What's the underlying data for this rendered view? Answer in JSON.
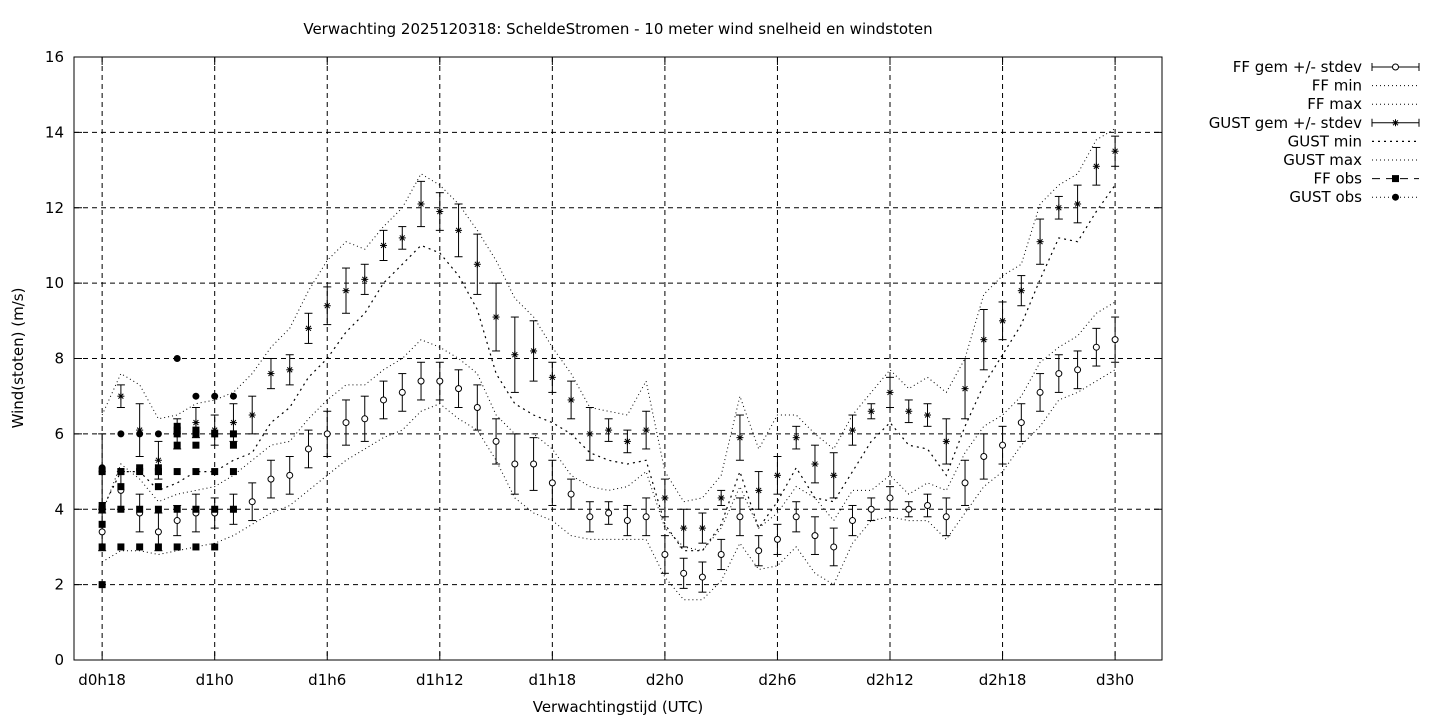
{
  "chart_data": {
    "type": "line",
    "title": "Verwachting 2025120318: ScheldeStromen - 10 meter wind snelheid en windstoten",
    "xlabel": "Verwachtingstijd (UTC)",
    "ylabel": "Wind(stoten) (m/s)",
    "ylim": [
      0,
      16
    ],
    "xlim": [
      -1.5,
      56.5
    ],
    "grid": true,
    "legend_position": "outside-right",
    "x_ticks": [
      {
        "x": 0,
        "label": "d0h18"
      },
      {
        "x": 6,
        "label": "d1h0"
      },
      {
        "x": 12,
        "label": "d1h6"
      },
      {
        "x": 18,
        "label": "d1h12"
      },
      {
        "x": 24,
        "label": "d1h18"
      },
      {
        "x": 30,
        "label": "d2h0"
      },
      {
        "x": 36,
        "label": "d2h6"
      },
      {
        "x": 42,
        "label": "d2h12"
      },
      {
        "x": 48,
        "label": "d2h18"
      },
      {
        "x": 54,
        "label": "d3h0"
      }
    ],
    "y_ticks": [
      0,
      2,
      4,
      6,
      8,
      10,
      12,
      14,
      16
    ],
    "legend": [
      {
        "label": "FF gem +/- stdev",
        "style": "errorbar-circle"
      },
      {
        "label": "FF min",
        "style": "dotted"
      },
      {
        "label": "FF max",
        "style": "dotted"
      },
      {
        "label": "GUST gem +/- stdev",
        "style": "errorbar-star"
      },
      {
        "label": "GUST min",
        "style": "dotted-coarse"
      },
      {
        "label": "GUST max",
        "style": "dotted"
      },
      {
        "label": "FF obs",
        "style": "dash-square"
      },
      {
        "label": "GUST obs",
        "style": "dotted-circle"
      }
    ],
    "x": [
      0,
      1,
      2,
      3,
      4,
      5,
      6,
      7,
      8,
      9,
      10,
      11,
      12,
      13,
      14,
      15,
      16,
      17,
      18,
      19,
      20,
      21,
      22,
      23,
      24,
      25,
      26,
      27,
      28,
      29,
      30,
      31,
      32,
      33,
      34,
      35,
      36,
      37,
      38,
      39,
      40,
      41,
      42,
      43,
      44,
      45,
      46,
      47,
      48,
      49,
      50,
      51,
      52,
      53,
      54
    ],
    "series": [
      {
        "name": "FF gem +/- stdev",
        "values": [
          3.4,
          4.5,
          3.9,
          3.4,
          3.7,
          3.9,
          3.9,
          4.0,
          4.2,
          4.8,
          4.9,
          5.6,
          6.0,
          6.3,
          6.4,
          6.9,
          7.1,
          7.4,
          7.4,
          7.2,
          6.7,
          5.8,
          5.2,
          5.2,
          4.7,
          4.4,
          3.8,
          3.9,
          3.7,
          3.8,
          2.8,
          2.3,
          2.2,
          2.8,
          3.8,
          2.9,
          3.2,
          3.8,
          3.3,
          3.0,
          3.7,
          4.0,
          4.3,
          4.0,
          4.1,
          3.8,
          4.7,
          5.4,
          5.7,
          6.3,
          7.1,
          7.6,
          7.7,
          8.3,
          8.5
        ],
        "stdev": [
          0.5,
          0.5,
          0.5,
          0.5,
          0.4,
          0.5,
          0.4,
          0.4,
          0.5,
          0.5,
          0.5,
          0.5,
          0.6,
          0.6,
          0.6,
          0.5,
          0.5,
          0.5,
          0.5,
          0.5,
          0.6,
          0.6,
          0.8,
          0.7,
          0.6,
          0.4,
          0.4,
          0.3,
          0.4,
          0.5,
          0.5,
          0.4,
          0.4,
          0.4,
          0.5,
          0.4,
          0.4,
          0.4,
          0.5,
          0.5,
          0.4,
          0.3,
          0.3,
          0.2,
          0.3,
          0.5,
          0.6,
          0.6,
          0.5,
          0.5,
          0.5,
          0.5,
          0.5,
          0.5,
          0.6
        ]
      },
      {
        "name": "FF min",
        "values": [
          2.6,
          2.9,
          2.9,
          2.8,
          2.9,
          3.0,
          3.1,
          3.3,
          3.6,
          3.9,
          4.1,
          4.5,
          4.9,
          5.3,
          5.6,
          5.9,
          6.1,
          6.6,
          6.8,
          6.4,
          6.1,
          5.3,
          4.3,
          3.9,
          3.7,
          3.3,
          3.2,
          3.2,
          3.2,
          3.2,
          2.2,
          1.6,
          1.6,
          2.1,
          3.1,
          2.4,
          2.5,
          3.0,
          2.3,
          2.0,
          3.1,
          3.7,
          3.8,
          3.7,
          3.7,
          3.2,
          3.9,
          4.6,
          5.0,
          5.7,
          6.2,
          6.9,
          7.1,
          7.4,
          7.7
        ]
      },
      {
        "name": "FF max",
        "values": [
          3.9,
          5.2,
          4.8,
          4.2,
          4.4,
          4.5,
          4.6,
          4.9,
          5.3,
          5.7,
          5.8,
          6.4,
          6.9,
          7.3,
          7.3,
          7.7,
          8.0,
          8.5,
          8.3,
          8.0,
          7.6,
          6.5,
          6.0,
          6.0,
          5.6,
          4.9,
          4.6,
          4.5,
          4.6,
          5.0,
          3.5,
          3.0,
          2.9,
          3.5,
          4.6,
          3.5,
          3.9,
          4.6,
          4.3,
          3.7,
          4.5,
          4.5,
          4.9,
          4.4,
          4.7,
          4.5,
          5.5,
          6.2,
          6.5,
          7.0,
          7.9,
          8.3,
          8.6,
          9.2,
          9.5
        ]
      },
      {
        "name": "GUST gem +/- stdev",
        "values": [
          5.0,
          7.0,
          6.1,
          5.3,
          6.0,
          6.3,
          6.1,
          6.3,
          6.5,
          7.6,
          7.7,
          8.8,
          9.4,
          9.8,
          10.1,
          11.0,
          11.2,
          12.1,
          11.9,
          11.4,
          10.5,
          9.1,
          8.1,
          8.2,
          7.5,
          6.9,
          6.0,
          6.1,
          5.8,
          6.1,
          4.3,
          3.5,
          3.5,
          4.3,
          5.9,
          4.5,
          4.9,
          5.9,
          5.2,
          4.9,
          6.1,
          6.6,
          7.1,
          6.6,
          6.5,
          5.8,
          7.2,
          8.5,
          9.0,
          9.8,
          11.1,
          12.0,
          12.1,
          13.1,
          13.5
        ],
        "stdev": [
          1.0,
          0.3,
          0.7,
          0.5,
          0.4,
          0.4,
          0.4,
          0.5,
          0.5,
          0.4,
          0.4,
          0.4,
          0.5,
          0.6,
          0.4,
          0.4,
          0.3,
          0.6,
          0.5,
          0.7,
          0.8,
          0.9,
          1.0,
          0.8,
          0.4,
          0.5,
          0.7,
          0.3,
          0.3,
          0.5,
          0.5,
          0.5,
          0.4,
          0.2,
          0.6,
          0.5,
          0.5,
          0.3,
          0.5,
          0.6,
          0.4,
          0.2,
          0.4,
          0.3,
          0.3,
          0.6,
          0.8,
          0.8,
          0.5,
          0.4,
          0.6,
          0.3,
          0.5,
          0.5,
          0.4
        ]
      },
      {
        "name": "GUST min",
        "values": [
          4.0,
          5.0,
          5.0,
          4.5,
          4.7,
          5.0,
          5.0,
          5.3,
          5.5,
          6.3,
          6.7,
          7.5,
          8.0,
          8.7,
          9.2,
          10.0,
          10.5,
          11.0,
          10.8,
          10.2,
          9.3,
          7.6,
          6.8,
          6.5,
          6.3,
          6.0,
          5.5,
          5.3,
          5.2,
          5.3,
          3.6,
          2.9,
          2.9,
          3.6,
          5.0,
          3.5,
          4.2,
          5.1,
          4.3,
          4.2,
          5.0,
          5.8,
          6.3,
          5.7,
          5.6,
          4.9,
          6.2,
          7.3,
          8.1,
          8.9,
          10.1,
          11.2,
          11.1,
          11.9,
          12.6
        ]
      },
      {
        "name": "GUST max",
        "values": [
          6.5,
          7.6,
          7.3,
          6.4,
          6.5,
          6.8,
          6.9,
          7.1,
          7.6,
          8.3,
          8.8,
          9.8,
          10.6,
          11.1,
          10.9,
          11.5,
          12.0,
          12.9,
          12.6,
          12.1,
          11.4,
          10.6,
          9.6,
          9.1,
          8.3,
          7.6,
          6.7,
          6.6,
          6.5,
          7.4,
          5.0,
          4.2,
          4.3,
          4.9,
          7.0,
          5.6,
          6.5,
          6.5,
          6.0,
          5.6,
          6.5,
          7.1,
          7.7,
          7.2,
          7.5,
          7.1,
          8.0,
          9.7,
          10.2,
          10.5,
          12.1,
          12.6,
          12.9,
          13.8,
          14.1
        ]
      },
      {
        "name": "FF obs",
        "x": [
          0,
          0,
          0,
          0,
          0,
          0,
          1,
          1,
          1,
          1,
          1,
          2,
          2,
          2,
          2,
          3,
          3,
          3,
          3,
          3,
          3,
          4,
          4,
          4,
          4,
          4,
          4,
          4,
          5,
          5,
          5,
          5,
          5,
          5,
          6,
          6,
          6,
          6,
          7,
          7,
          7,
          7
        ],
        "values": [
          2,
          3,
          3.6,
          4,
          4.1,
          5,
          3,
          4,
          4.6,
          5,
          5,
          3,
          4,
          5,
          5.1,
          3,
          4,
          4.6,
          5,
          5,
          5.1,
          3,
          4,
          5,
          5.7,
          6,
          6.1,
          6.2,
          3,
          4,
          5,
          5.7,
          6,
          6.1,
          3,
          4,
          5,
          6,
          4,
          5,
          5.7,
          6
        ]
      },
      {
        "name": "GUST obs",
        "x": [
          0,
          0,
          1,
          2,
          3,
          4,
          4,
          5,
          5,
          6,
          6,
          7
        ],
        "values": [
          5,
          5.1,
          6,
          6,
          6,
          6,
          8,
          6,
          7,
          6,
          7,
          7
        ]
      }
    ]
  }
}
